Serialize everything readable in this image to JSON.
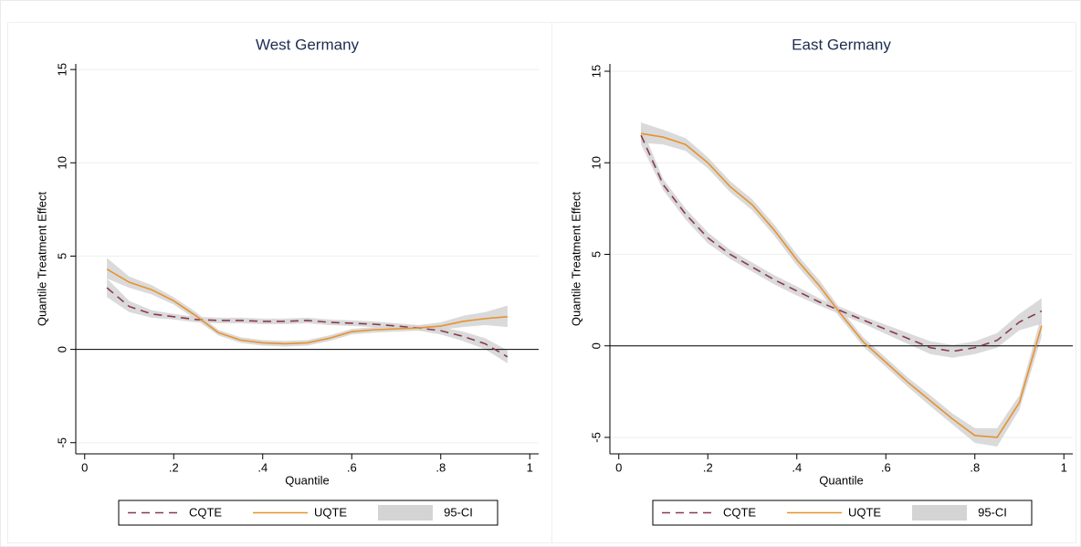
{
  "chart_data": [
    {
      "type": "line",
      "title": "West Germany",
      "xlabel": "Quantile",
      "ylabel": "Quantile Treatment Effect",
      "x": [
        0.05,
        0.1,
        0.15,
        0.2,
        0.25,
        0.3,
        0.35,
        0.4,
        0.45,
        0.5,
        0.55,
        0.6,
        0.65,
        0.7,
        0.75,
        0.8,
        0.85,
        0.9,
        0.95
      ],
      "xlim": [
        -0.02,
        1.02
      ],
      "xticks": [
        0,
        {
          "value": 0.2,
          "label": ".2"
        },
        {
          "value": 0.4,
          "label": ".4"
        },
        {
          "value": 0.6,
          "label": ".6"
        },
        {
          "value": 0.8,
          "label": ".8"
        },
        1
      ],
      "ylim": [
        -5.6,
        15.3
      ],
      "yticks": [
        -5,
        0,
        5,
        10,
        15
      ],
      "grid": true,
      "ci": {
        "name": "95-CI",
        "color": "#d4d4d4"
      },
      "series": [
        {
          "name": "CQTE",
          "color": "#8b3a4c",
          "linestyle": "dashed",
          "values": [
            3.3,
            2.3,
            1.9,
            1.75,
            1.6,
            1.55,
            1.55,
            1.5,
            1.5,
            1.55,
            1.45,
            1.4,
            1.35,
            1.25,
            1.15,
            1.0,
            0.7,
            0.3,
            -0.4
          ],
          "ci_lower": [
            2.8,
            2.0,
            1.7,
            1.6,
            1.45,
            1.4,
            1.4,
            1.35,
            1.35,
            1.4,
            1.3,
            1.25,
            1.2,
            1.1,
            1.0,
            0.8,
            0.45,
            0.0,
            -0.75
          ],
          "ci_upper": [
            3.8,
            2.6,
            2.1,
            1.9,
            1.75,
            1.7,
            1.7,
            1.65,
            1.65,
            1.7,
            1.6,
            1.55,
            1.5,
            1.4,
            1.3,
            1.2,
            0.95,
            0.6,
            -0.05
          ]
        },
        {
          "name": "UQTE",
          "color": "#e8922e",
          "linestyle": "solid",
          "values": [
            4.3,
            3.6,
            3.2,
            2.6,
            1.8,
            0.9,
            0.5,
            0.35,
            0.3,
            0.35,
            0.6,
            0.95,
            1.05,
            1.1,
            1.15,
            1.25,
            1.5,
            1.65,
            1.75
          ],
          "ci_lower": [
            3.8,
            3.3,
            2.95,
            2.4,
            1.6,
            0.75,
            0.35,
            0.2,
            0.15,
            0.2,
            0.45,
            0.8,
            0.9,
            0.95,
            1.0,
            1.05,
            1.2,
            1.3,
            1.2
          ],
          "ci_upper": [
            4.9,
            3.9,
            3.45,
            2.8,
            2.0,
            1.05,
            0.65,
            0.5,
            0.45,
            0.5,
            0.75,
            1.1,
            1.2,
            1.25,
            1.3,
            1.45,
            1.8,
            2.0,
            2.35
          ]
        }
      ]
    },
    {
      "type": "line",
      "title": "East Germany",
      "xlabel": "Quantile",
      "ylabel": "Quantile Treatment Effect",
      "x": [
        0.05,
        0.1,
        0.15,
        0.2,
        0.25,
        0.3,
        0.35,
        0.4,
        0.45,
        0.5,
        0.55,
        0.6,
        0.65,
        0.7,
        0.75,
        0.8,
        0.85,
        0.9,
        0.95
      ],
      "xlim": [
        -0.02,
        1.02
      ],
      "xticks": [
        0,
        {
          "value": 0.2,
          "label": ".2"
        },
        {
          "value": 0.4,
          "label": ".4"
        },
        {
          "value": 0.6,
          "label": ".6"
        },
        {
          "value": 0.8,
          "label": ".8"
        },
        1
      ],
      "ylim": [
        -5.9,
        15.4
      ],
      "yticks": [
        -5,
        0,
        5,
        10,
        15
      ],
      "grid": true,
      "ci": {
        "name": "95-CI",
        "color": "#d4d4d4"
      },
      "series": [
        {
          "name": "CQTE",
          "color": "#8b3a4c",
          "linestyle": "dashed",
          "values": [
            11.5,
            8.8,
            7.2,
            5.9,
            5.0,
            4.3,
            3.6,
            3.0,
            2.4,
            1.9,
            1.4,
            0.9,
            0.4,
            -0.1,
            -0.3,
            -0.1,
            0.3,
            1.3,
            1.9
          ],
          "ci_lower": [
            11.0,
            8.5,
            6.9,
            5.6,
            4.75,
            4.05,
            3.35,
            2.75,
            2.2,
            1.7,
            1.2,
            0.65,
            0.1,
            -0.45,
            -0.65,
            -0.45,
            -0.1,
            0.85,
            1.2
          ],
          "ci_upper": [
            12.0,
            9.1,
            7.5,
            6.2,
            5.25,
            4.55,
            3.85,
            3.25,
            2.6,
            2.1,
            1.6,
            1.15,
            0.7,
            0.25,
            0.05,
            0.25,
            0.7,
            1.75,
            2.6
          ]
        },
        {
          "name": "UQTE",
          "color": "#e8922e",
          "linestyle": "solid",
          "values": [
            11.6,
            11.4,
            11.0,
            10.0,
            8.7,
            7.7,
            6.3,
            4.7,
            3.3,
            1.7,
            0.2,
            -0.9,
            -2.0,
            -3.0,
            -4.0,
            -4.9,
            -5.0,
            -3.1,
            1.1
          ],
          "ci_lower": [
            11.1,
            11.0,
            10.65,
            9.7,
            8.4,
            7.4,
            6.0,
            4.4,
            3.0,
            1.45,
            -0.05,
            -1.15,
            -2.25,
            -3.3,
            -4.3,
            -5.3,
            -5.5,
            -3.5,
            0.5
          ],
          "ci_upper": [
            12.2,
            11.8,
            11.35,
            10.3,
            9.0,
            8.0,
            6.6,
            5.0,
            3.6,
            1.95,
            0.45,
            -0.65,
            -1.75,
            -2.7,
            -3.7,
            -4.5,
            -4.5,
            -2.7,
            1.7
          ]
        }
      ]
    }
  ]
}
